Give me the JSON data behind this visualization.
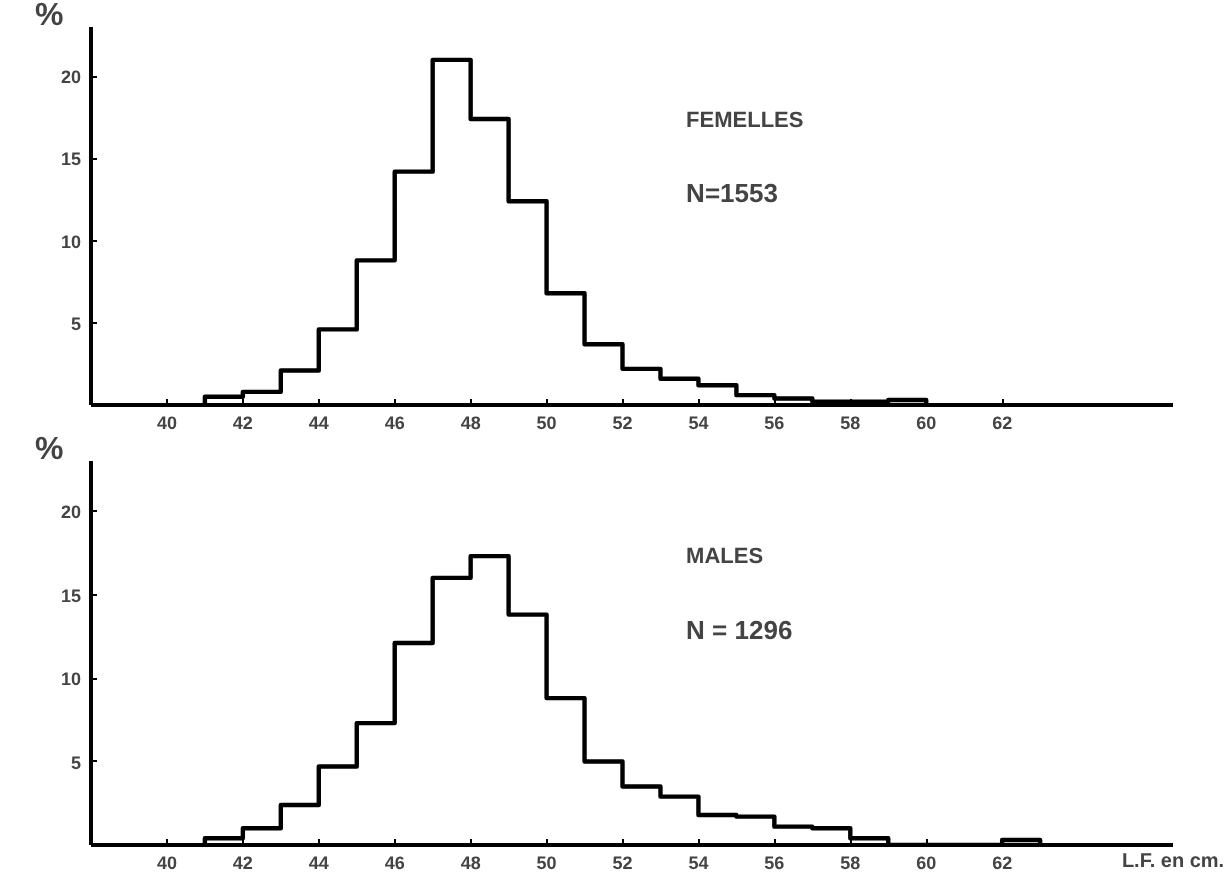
{
  "chart_data": [
    {
      "type": "histogram",
      "ylabel": "%",
      "annotations": [
        "FEMELLES",
        "N=1553"
      ],
      "color": "#000000",
      "bins": [
        41,
        42,
        43,
        44,
        45,
        46,
        47,
        48,
        49,
        50,
        51,
        52,
        53,
        54,
        55,
        56,
        57,
        58,
        59,
        60
      ],
      "values": [
        0.5,
        0.8,
        2.1,
        4.6,
        8.8,
        14.2,
        21.0,
        17.4,
        12.4,
        6.8,
        3.7,
        2.2,
        1.6,
        1.2,
        0.6,
        0.4,
        0.2,
        0.2,
        0.3
      ],
      "xlim": [
        38,
        66.5
      ],
      "ylim": [
        0,
        23
      ],
      "xticks": [
        40,
        42,
        44,
        46,
        48,
        50,
        52,
        54,
        56,
        58,
        60,
        62
      ],
      "yticks": [
        5,
        10,
        15,
        20
      ],
      "grid": false
    },
    {
      "type": "histogram",
      "ylabel": "%",
      "xlabel": "L.F. en cm.",
      "annotations": [
        "MALES",
        "N = 1296"
      ],
      "color": "#000000",
      "bins": [
        41,
        42,
        43,
        44,
        45,
        46,
        47,
        48,
        49,
        50,
        51,
        52,
        53,
        54,
        55,
        56,
        57,
        58,
        59,
        60,
        61,
        62,
        63
      ],
      "values": [
        0.4,
        1.0,
        2.4,
        4.7,
        7.3,
        12.1,
        16.0,
        17.3,
        13.8,
        8.8,
        5.0,
        3.5,
        2.9,
        1.8,
        1.7,
        1.1,
        1.0,
        0.4,
        0,
        0,
        0,
        0.3
      ],
      "xlim": [
        38,
        66.5
      ],
      "ylim": [
        0,
        23
      ],
      "xticks": [
        40,
        42,
        44,
        46,
        48,
        50,
        52,
        54,
        56,
        58,
        60,
        62
      ],
      "yticks": [
        5,
        10,
        15,
        20
      ],
      "grid": false
    }
  ]
}
